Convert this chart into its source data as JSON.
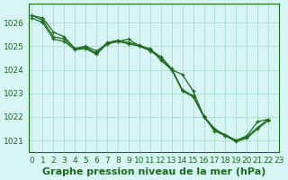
{
  "title": "Graphe pression niveau de la mer (hPa)",
  "bg_color": "#d8f5f5",
  "grid_color": "#aaddcc",
  "line_color": "#1a6b1a",
  "marker_color": "#1a6b1a",
  "xlim": [
    0,
    23
  ],
  "ylim": [
    1020.5,
    1026.8
  ],
  "yticks": [
    1021,
    1022,
    1023,
    1024,
    1025,
    1026
  ],
  "xticks": [
    0,
    1,
    2,
    3,
    4,
    5,
    6,
    7,
    8,
    9,
    10,
    11,
    12,
    13,
    14,
    15,
    16,
    17,
    18,
    19,
    20,
    21,
    22,
    23
  ],
  "series": [
    [
      1026.3,
      1026.2,
      1025.6,
      1025.4,
      1024.9,
      1025.0,
      1024.8,
      1025.1,
      1025.2,
      1025.3,
      1025.0,
      1024.9,
      1024.4,
      1024.0,
      1023.8,
      1023.1,
      1022.0,
      1021.5,
      1021.2,
      1021.0,
      1021.2,
      1021.8,
      1021.9
    ],
    [
      1026.3,
      1026.1,
      1025.4,
      1025.3,
      1024.9,
      1024.95,
      1024.7,
      1025.15,
      1025.25,
      1025.15,
      1025.05,
      1024.85,
      1024.55,
      1024.05,
      1023.15,
      1022.9,
      1022.05,
      1021.45,
      1021.25,
      1021.0,
      1021.15,
      1021.55,
      1021.9
    ],
    [
      1026.2,
      1026.0,
      1025.3,
      1025.2,
      1024.85,
      1024.9,
      1024.65,
      1025.1,
      1025.2,
      1025.1,
      1025.0,
      1024.8,
      1024.5,
      1024.0,
      1023.1,
      1022.85,
      1022.0,
      1021.4,
      1021.2,
      1020.95,
      1021.1,
      1021.5,
      1021.85
    ]
  ],
  "title_fontsize": 8,
  "tick_fontsize": 6.5
}
